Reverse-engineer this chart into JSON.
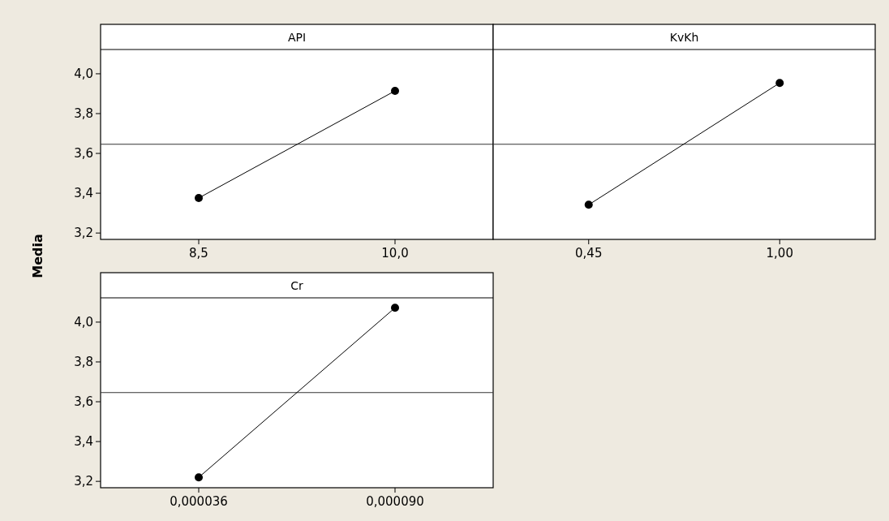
{
  "chart_data": [
    {
      "type": "line",
      "title": "API",
      "ylabel": "Media",
      "categories": [
        "8,5",
        "10,0"
      ],
      "values": [
        3.376,
        3.914
      ],
      "color": "#000000",
      "marker": "circle",
      "ylim": [
        3.168,
        4.122
      ],
      "yticks": [
        {
          "value": 3.2,
          "label": "3,2"
        },
        {
          "value": 3.4,
          "label": "3,4"
        },
        {
          "value": 3.6,
          "label": "3,6"
        },
        {
          "value": 3.8,
          "label": "3,8"
        },
        {
          "value": 4.0,
          "label": "4,0"
        }
      ],
      "ref_lines": [
        {
          "axis": "y",
          "value": 3.646,
          "color": "#333333"
        }
      ]
    },
    {
      "type": "line",
      "title": "KvKh",
      "categories": [
        "0,45",
        "1,00"
      ],
      "values": [
        3.342,
        3.954
      ],
      "color": "#000000",
      "marker": "circle",
      "ylim": [
        3.168,
        4.122
      ],
      "tick_labels": "x",
      "ref_lines": [
        {
          "axis": "y",
          "value": 3.646,
          "color": "#333333"
        }
      ]
    },
    {
      "type": "line",
      "title": "Cr",
      "categories": [
        "0,000036",
        "0,000090"
      ],
      "values": [
        3.22,
        4.072
      ],
      "color": "#000000",
      "marker": "circle",
      "ylim": [
        3.168,
        4.122
      ],
      "yticks": [
        {
          "value": 3.2,
          "label": "3,2"
        },
        {
          "value": 3.4,
          "label": "3,4"
        },
        {
          "value": 3.6,
          "label": "3,6"
        },
        {
          "value": 3.8,
          "label": "3,8"
        },
        {
          "value": 4.0,
          "label": "4,0"
        }
      ],
      "ref_lines": [
        {
          "axis": "y",
          "value": 3.646,
          "color": "#333333"
        }
      ]
    }
  ]
}
